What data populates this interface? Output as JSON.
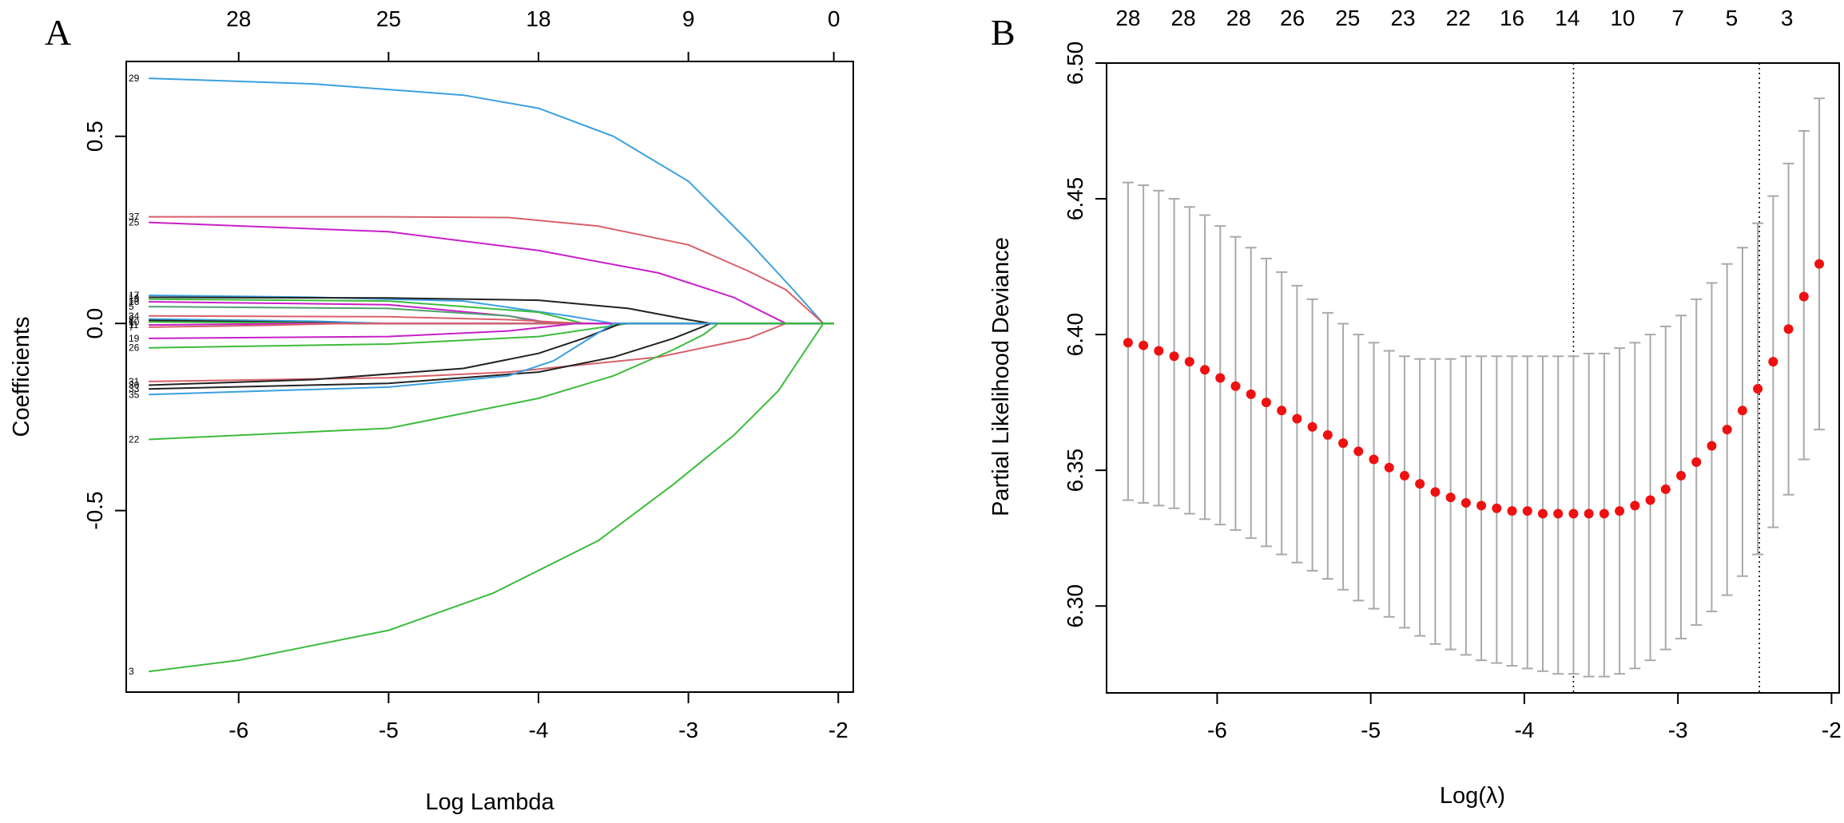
{
  "chart_data": [
    {
      "panel_label": "A",
      "type": "line",
      "title": "",
      "xlabel": "Log Lambda",
      "ylabel": "Coefficients",
      "xlim": [
        -6.75,
        -1.9
      ],
      "ylim": [
        -0.985,
        0.7
      ],
      "x_ticks": [
        -6,
        -5,
        -4,
        -3,
        -2
      ],
      "x_tick_labels": [
        "-6",
        "-5",
        "-4",
        "-3",
        "-2"
      ],
      "y_ticks": [
        0.5,
        0.0,
        -0.5
      ],
      "y_tick_labels": [
        "0.5",
        "0.0",
        "-0.5"
      ],
      "top_axis_positions": [
        -6,
        -5,
        -4,
        -3,
        -2.03
      ],
      "top_axis_labels": [
        "28",
        "25",
        "18",
        "9",
        "0"
      ],
      "series": [
        {
          "name": "29",
          "color": "#3aa0e0",
          "x": [
            -6.6,
            -5.5,
            -4.5,
            -4.0,
            -3.5,
            -3.0,
            -2.6,
            -2.3,
            -2.1
          ],
          "values": [
            0.655,
            0.64,
            0.61,
            0.575,
            0.5,
            0.38,
            0.22,
            0.09,
            0.0
          ]
        },
        {
          "name": "37",
          "color": "#d8606a",
          "x": [
            -6.6,
            -5.0,
            -4.2,
            -3.6,
            -3.0,
            -2.6,
            -2.35,
            -2.1
          ],
          "values": [
            0.285,
            0.285,
            0.283,
            0.26,
            0.21,
            0.14,
            0.09,
            0.0
          ]
        },
        {
          "name": "25",
          "color": "#c81fc8",
          "x": [
            -6.6,
            -5.0,
            -4.0,
            -3.2,
            -2.7,
            -2.35
          ],
          "values": [
            0.27,
            0.245,
            0.195,
            0.135,
            0.07,
            0.0
          ]
        },
        {
          "name": "17",
          "color": "#3aa0e0",
          "x": [
            -6.6,
            -5.5,
            -4.5,
            -3.8,
            -3.5
          ],
          "values": [
            0.075,
            0.07,
            0.06,
            0.02,
            0.0
          ]
        },
        {
          "name": "14",
          "color": "#222222",
          "x": [
            -6.6,
            -5.0,
            -4.0,
            -3.4,
            -3.0,
            -2.85
          ],
          "values": [
            0.07,
            0.068,
            0.062,
            0.04,
            0.01,
            0.0
          ]
        },
        {
          "name": "13",
          "color": "#3cbc3c",
          "x": [
            -6.6,
            -5.0,
            -4.0,
            -3.7
          ],
          "values": [
            0.065,
            0.06,
            0.03,
            0.0
          ]
        },
        {
          "name": "16",
          "color": "#c81fc8",
          "x": [
            -6.6,
            -5.0,
            -4.2,
            -3.9
          ],
          "values": [
            0.058,
            0.05,
            0.02,
            0.0
          ]
        },
        {
          "name": "5",
          "color": "#4fa06e",
          "x": [
            -6.6,
            -5.0,
            -4.2,
            -3.95
          ],
          "values": [
            0.045,
            0.04,
            0.02,
            0.0
          ]
        },
        {
          "name": "34",
          "color": "#d8606a",
          "x": [
            -6.6,
            -5.0,
            -4.2,
            -3.7
          ],
          "values": [
            0.02,
            0.018,
            0.01,
            0.0
          ]
        },
        {
          "name": "2",
          "color": "#3aa0e0",
          "x": [
            -6.6,
            -5.5,
            -5.0
          ],
          "values": [
            0.012,
            0.006,
            0.0
          ]
        },
        {
          "name": "8",
          "color": "#222222",
          "x": [
            -6.6,
            -5.8,
            -5.2
          ],
          "values": [
            0.008,
            0.004,
            0.0
          ]
        },
        {
          "name": "10",
          "color": "#3cbc3c",
          "x": [
            -6.6,
            -5.8,
            -5.3
          ],
          "values": [
            0.004,
            0.002,
            0.0
          ]
        },
        {
          "name": "11",
          "color": "#c81fc8",
          "x": [
            -6.6,
            -6.0,
            -5.6
          ],
          "values": [
            -0.004,
            -0.002,
            0.0
          ]
        },
        {
          "name": "7",
          "color": "#d8606a",
          "x": [
            -6.6,
            -5.8,
            -5.3
          ],
          "values": [
            -0.01,
            -0.005,
            0.0
          ]
        },
        {
          "name": "19",
          "color": "#c81fc8",
          "x": [
            -6.6,
            -5.0,
            -4.2,
            -3.75
          ],
          "values": [
            -0.04,
            -0.035,
            -0.02,
            0.0
          ]
        },
        {
          "name": "26",
          "color": "#3cbc3c",
          "x": [
            -6.6,
            -5.0,
            -4.0,
            -3.4
          ],
          "values": [
            -0.065,
            -0.055,
            -0.035,
            0.0
          ]
        },
        {
          "name": "31",
          "color": "#d8606a",
          "x": [
            -6.6,
            -5.0,
            -4.2,
            -3.2,
            -2.6,
            -2.35
          ],
          "values": [
            -0.155,
            -0.145,
            -0.13,
            -0.09,
            -0.04,
            0.0
          ]
        },
        {
          "name": "30",
          "color": "#222222",
          "x": [
            -6.6,
            -5.5,
            -4.5,
            -4.0,
            -3.7,
            -3.45
          ],
          "values": [
            -0.165,
            -0.15,
            -0.12,
            -0.08,
            -0.04,
            0.0
          ]
        },
        {
          "name": "33",
          "color": "#222222",
          "x": [
            -6.6,
            -5.0,
            -4.0,
            -3.5,
            -3.1,
            -2.85
          ],
          "values": [
            -0.175,
            -0.16,
            -0.13,
            -0.09,
            -0.04,
            0.0
          ]
        },
        {
          "name": "35",
          "color": "#3aa0e0",
          "x": [
            -6.6,
            -5.0,
            -4.2,
            -3.9,
            -3.7,
            -3.5
          ],
          "values": [
            -0.19,
            -0.17,
            -0.14,
            -0.1,
            -0.05,
            0.0
          ]
        },
        {
          "name": "22",
          "color": "#3cbc3c",
          "x": [
            -6.6,
            -5.0,
            -4.0,
            -3.5,
            -3.1,
            -2.9,
            -2.8
          ],
          "values": [
            -0.31,
            -0.28,
            -0.2,
            -0.14,
            -0.07,
            -0.03,
            0.0
          ]
        },
        {
          "name": "3",
          "color": "#3cbc3c",
          "x": [
            -6.6,
            -6.0,
            -5.0,
            -4.3,
            -3.6,
            -3.1,
            -2.7,
            -2.4,
            -2.25,
            -2.1
          ],
          "values": [
            -0.93,
            -0.9,
            -0.82,
            -0.72,
            -0.58,
            -0.43,
            -0.3,
            -0.18,
            -0.09,
            0.0
          ]
        }
      ]
    },
    {
      "panel_label": "B",
      "type": "scatter",
      "title": "",
      "xlabel": "Log(λ)",
      "ylabel": "Partial Likelihood Deviance",
      "xlim": [
        -6.72,
        -1.95
      ],
      "ylim": [
        6.268,
        6.5
      ],
      "x_ticks": [
        -6,
        -5,
        -4,
        -3,
        -2
      ],
      "x_tick_labels": [
        "-6",
        "-5",
        "-4",
        "-3",
        "-2"
      ],
      "y_ticks": [
        6.3,
        6.35,
        6.4,
        6.45,
        6.5
      ],
      "y_tick_labels": [
        "6.30",
        "6.35",
        "6.40",
        "6.45",
        "6.50"
      ],
      "top_axis_positions": [
        -6.58,
        -6.22,
        -5.86,
        -5.51,
        -5.15,
        -4.79,
        -4.43,
        -4.08,
        -3.72,
        -3.36,
        -3.0,
        -2.65,
        -2.29
      ],
      "top_axis_labels": [
        "28",
        "28",
        "28",
        "26",
        "25",
        "23",
        "22",
        "16",
        "14",
        "10",
        "7",
        "5",
        "3"
      ],
      "vlines": [
        -3.68,
        -2.47
      ],
      "marker_color": "#ee1111",
      "errorbar_color": "#a9a9a9",
      "x": [
        -6.58,
        -6.48,
        -6.38,
        -6.28,
        -6.18,
        -6.08,
        -5.98,
        -5.88,
        -5.78,
        -5.68,
        -5.58,
        -5.48,
        -5.38,
        -5.28,
        -5.18,
        -5.08,
        -4.98,
        -4.88,
        -4.78,
        -4.68,
        -4.58,
        -4.48,
        -4.38,
        -4.28,
        -4.18,
        -4.08,
        -3.98,
        -3.88,
        -3.78,
        -3.68,
        -3.58,
        -3.48,
        -3.38,
        -3.28,
        -3.18,
        -3.08,
        -2.98,
        -2.88,
        -2.78,
        -2.68,
        -2.58,
        -2.48,
        -2.38,
        -2.28,
        -2.18,
        -2.08
      ],
      "values": [
        6.397,
        6.396,
        6.394,
        6.392,
        6.39,
        6.387,
        6.384,
        6.381,
        6.378,
        6.375,
        6.372,
        6.369,
        6.366,
        6.363,
        6.36,
        6.357,
        6.354,
        6.351,
        6.348,
        6.345,
        6.342,
        6.34,
        6.338,
        6.337,
        6.336,
        6.335,
        6.335,
        6.334,
        6.334,
        6.334,
        6.334,
        6.334,
        6.335,
        6.337,
        6.339,
        6.343,
        6.348,
        6.353,
        6.359,
        6.365,
        6.372,
        6.38,
        6.39,
        6.402,
        6.414,
        6.426
      ],
      "err_low": [
        6.339,
        6.338,
        6.337,
        6.336,
        6.334,
        6.332,
        6.33,
        6.328,
        6.325,
        6.322,
        6.319,
        6.316,
        6.313,
        6.31,
        6.306,
        6.302,
        6.299,
        6.296,
        6.292,
        6.289,
        6.286,
        6.284,
        6.282,
        6.28,
        6.279,
        6.278,
        6.277,
        6.276,
        6.275,
        6.275,
        6.274,
        6.274,
        6.275,
        6.277,
        6.28,
        6.284,
        6.288,
        6.293,
        6.298,
        6.304,
        6.311,
        6.319,
        6.329,
        6.341,
        6.354,
        6.365
      ],
      "err_high": [
        6.456,
        6.455,
        6.453,
        6.45,
        6.447,
        6.444,
        6.44,
        6.436,
        6.432,
        6.428,
        6.423,
        6.418,
        6.413,
        6.408,
        6.404,
        6.4,
        6.397,
        6.394,
        6.392,
        6.391,
        6.391,
        6.391,
        6.392,
        6.392,
        6.392,
        6.392,
        6.392,
        6.392,
        6.392,
        6.392,
        6.393,
        6.393,
        6.395,
        6.397,
        6.4,
        6.403,
        6.407,
        6.413,
        6.419,
        6.426,
        6.432,
        6.441,
        6.451,
        6.463,
        6.475,
        6.487
      ]
    }
  ]
}
